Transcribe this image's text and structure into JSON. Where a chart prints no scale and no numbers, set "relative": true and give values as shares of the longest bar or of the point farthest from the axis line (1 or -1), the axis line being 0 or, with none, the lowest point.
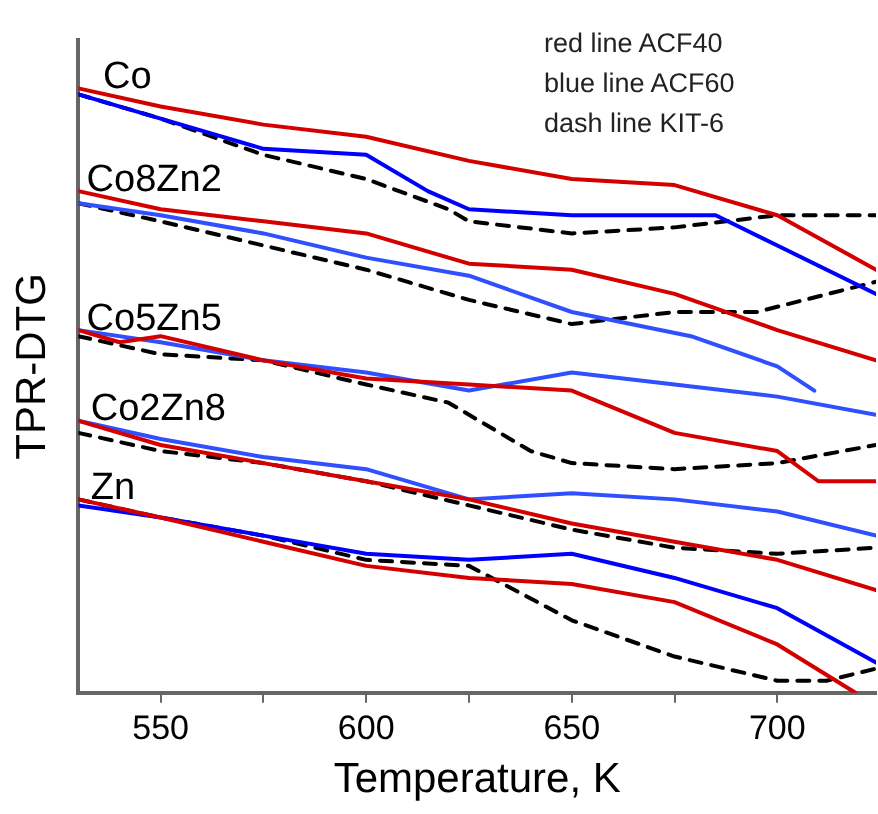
{
  "chart_data": {
    "type": "line",
    "relative": true,
    "xlabel": "Temperature, K",
    "ylabel": "TPR-DTG",
    "xlim": [
      530,
      724
    ],
    "xticks": [
      550,
      {
        "value": 575,
        "label": null
      },
      600,
      {
        "value": 625,
        "label": null
      },
      650,
      {
        "value": 675,
        "label": null
      },
      700
    ],
    "tick_labels": "x",
    "grid": false,
    "legend": false,
    "marker": "none",
    "series": [
      {
        "color": "#d40000",
        "x": [
          530,
          550,
          575,
          600,
          625,
          650,
          675,
          700,
          724
        ],
        "values": [
          1.0,
          0.97,
          0.94,
          0.92,
          0.88,
          0.85,
          0.84,
          0.79,
          0.7
        ]
      },
      {
        "color": "#0000ff",
        "x": [
          530,
          550,
          575,
          600,
          615,
          625,
          650,
          675,
          685,
          700,
          724
        ],
        "values": [
          0.99,
          0.95,
          0.9,
          0.89,
          0.83,
          0.8,
          0.79,
          0.79,
          0.79,
          0.74,
          0.66
        ]
      },
      {
        "color": "#000000",
        "line_style": "dashed",
        "x": [
          530,
          550,
          575,
          600,
          620,
          625,
          650,
          675,
          700,
          724
        ],
        "values": [
          0.99,
          0.95,
          0.89,
          0.85,
          0.8,
          0.78,
          0.76,
          0.77,
          0.79,
          0.79
        ]
      },
      {
        "color": "#d40000",
        "x": [
          530,
          550,
          575,
          600,
          620,
          625,
          650,
          675,
          700,
          724
        ],
        "values": [
          0.83,
          0.8,
          0.78,
          0.76,
          0.72,
          0.71,
          0.7,
          0.66,
          0.6,
          0.55
        ]
      },
      {
        "color": "#3050ff",
        "x": [
          530,
          550,
          575,
          600,
          625,
          650,
          679,
          700,
          709
        ],
        "values": [
          0.81,
          0.79,
          0.76,
          0.72,
          0.69,
          0.63,
          0.59,
          0.54,
          0.5
        ]
      },
      {
        "color": "#000000",
        "line_style": "dashed",
        "x": [
          530,
          550,
          575,
          600,
          625,
          650,
          675,
          695,
          724
        ],
        "values": [
          0.81,
          0.78,
          0.74,
          0.7,
          0.65,
          0.61,
          0.63,
          0.63,
          0.68
        ]
      },
      {
        "color": "#d40000",
        "x": [
          530,
          540,
          550,
          575,
          600,
          625,
          650,
          675,
          700,
          710,
          724
        ],
        "values": [
          0.6,
          0.58,
          0.59,
          0.55,
          0.52,
          0.51,
          0.5,
          0.43,
          0.4,
          0.35,
          0.35
        ]
      },
      {
        "color": "#3050ff",
        "x": [
          530,
          550,
          575,
          600,
          625,
          650,
          675,
          700,
          724
        ],
        "values": [
          0.6,
          0.58,
          0.55,
          0.53,
          0.5,
          0.53,
          0.51,
          0.49,
          0.46
        ]
      },
      {
        "color": "#000000",
        "line_style": "dashed",
        "x": [
          530,
          550,
          575,
          600,
          620,
          625,
          640,
          650,
          675,
          700,
          724
        ],
        "values": [
          0.59,
          0.56,
          0.55,
          0.51,
          0.48,
          0.46,
          0.4,
          0.38,
          0.37,
          0.38,
          0.41
        ]
      },
      {
        "color": "#d40000",
        "x": [
          530,
          550,
          575,
          600,
          625,
          650,
          675,
          700,
          724
        ],
        "values": [
          0.45,
          0.41,
          0.38,
          0.35,
          0.32,
          0.28,
          0.25,
          0.22,
          0.17
        ]
      },
      {
        "color": "#3050ff",
        "x": [
          530,
          550,
          575,
          600,
          625,
          650,
          675,
          700,
          724
        ],
        "values": [
          0.45,
          0.42,
          0.39,
          0.37,
          0.32,
          0.33,
          0.32,
          0.3,
          0.26
        ]
      },
      {
        "color": "#000000",
        "line_style": "dashed",
        "x": [
          530,
          550,
          575,
          600,
          625,
          650,
          675,
          700,
          724
        ],
        "values": [
          0.43,
          0.4,
          0.38,
          0.35,
          0.31,
          0.27,
          0.24,
          0.23,
          0.24
        ]
      },
      {
        "color": "#d40000",
        "x": [
          530,
          550,
          575,
          600,
          625,
          650,
          675,
          700,
          719
        ],
        "values": [
          0.32,
          0.29,
          0.25,
          0.21,
          0.19,
          0.18,
          0.15,
          0.08,
          0.0
        ]
      },
      {
        "color": "#0000ff",
        "x": [
          530,
          550,
          575,
          600,
          625,
          650,
          675,
          700,
          724
        ],
        "values": [
          0.31,
          0.29,
          0.26,
          0.23,
          0.22,
          0.23,
          0.19,
          0.14,
          0.05
        ]
      },
      {
        "color": "#000000",
        "line_style": "dashed",
        "x": [
          530,
          550,
          575,
          600,
          625,
          650,
          675,
          700,
          712,
          724
        ],
        "values": [
          0.32,
          0.29,
          0.26,
          0.22,
          0.21,
          0.12,
          0.06,
          0.02,
          0.02,
          0.04
        ]
      }
    ],
    "annotations": [
      {
        "text": "Co",
        "x": 536,
        "y": 1.0
      },
      {
        "text": "Co8Zn2",
        "x": 532,
        "y": 0.83
      },
      {
        "text": "Co5Zn5",
        "x": 532,
        "y": 0.6
      },
      {
        "text": "Co2Zn8",
        "x": 533,
        "y": 0.45
      },
      {
        "text": "Zn",
        "x": 533,
        "y": 0.32
      },
      "red line ACF40",
      "blue line ACF60",
      "dash line KIT-6"
    ]
  }
}
